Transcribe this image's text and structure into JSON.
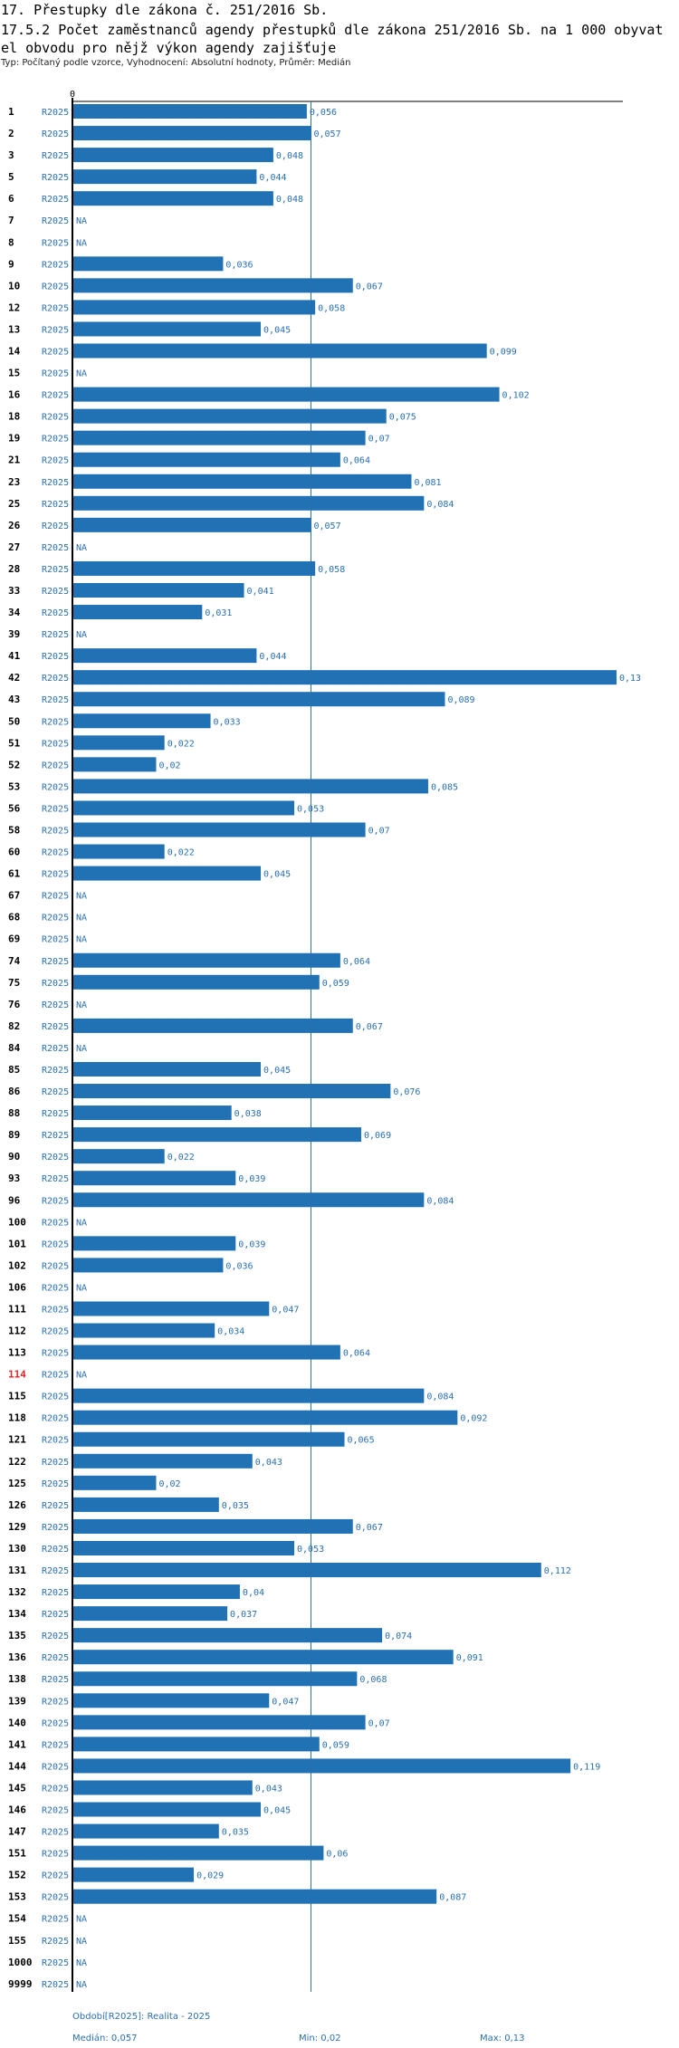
{
  "header": {
    "title_line1": "17. Přestupky dle zákona č. 251/2016 Sb.",
    "title_line2": "17.5.2 Počet zaměstnanců agendy přestupků dle zákona 251/2016 Sb. na 1 000 obyvat",
    "title_line3": "el obvodu pro nějž výkon agendy zajišťuje",
    "subtitle": "Typ: Počítaný podle vzorce, Vyhodnocení: Absolutní hodnoty, Průměr: Medián"
  },
  "colors": {
    "bar": "#2171b5",
    "label_blue": "#2a6fb0",
    "highlight_red": "#e0262b",
    "axis": "#000000"
  },
  "chart_data": {
    "type": "bar",
    "orientation": "horizontal",
    "axis_zero_label": "0",
    "xlim": [
      0,
      0.13
    ],
    "series_name": "R2025",
    "na_label": "NA",
    "median": 0.057,
    "highlight_category": "114",
    "categories": [
      "1",
      "2",
      "3",
      "5",
      "6",
      "7",
      "8",
      "9",
      "10",
      "12",
      "13",
      "14",
      "15",
      "16",
      "18",
      "19",
      "21",
      "23",
      "25",
      "26",
      "27",
      "28",
      "33",
      "34",
      "39",
      "41",
      "42",
      "43",
      "50",
      "51",
      "52",
      "53",
      "56",
      "58",
      "60",
      "61",
      "67",
      "68",
      "69",
      "74",
      "75",
      "76",
      "82",
      "84",
      "85",
      "86",
      "88",
      "89",
      "90",
      "93",
      "96",
      "100",
      "101",
      "102",
      "106",
      "111",
      "112",
      "113",
      "114",
      "115",
      "118",
      "121",
      "122",
      "125",
      "126",
      "129",
      "130",
      "131",
      "132",
      "134",
      "135",
      "136",
      "138",
      "139",
      "140",
      "141",
      "144",
      "145",
      "146",
      "147",
      "151",
      "152",
      "153",
      "154",
      "155",
      "1000",
      "9999"
    ],
    "values": [
      0.056,
      0.057,
      0.048,
      0.044,
      0.048,
      null,
      null,
      0.036,
      0.067,
      0.058,
      0.045,
      0.099,
      null,
      0.102,
      0.075,
      0.07,
      0.064,
      0.081,
      0.084,
      0.057,
      null,
      0.058,
      0.041,
      0.031,
      null,
      0.044,
      0.13,
      0.089,
      0.033,
      0.022,
      0.02,
      0.085,
      0.053,
      0.07,
      0.022,
      0.045,
      null,
      null,
      null,
      0.064,
      0.059,
      null,
      0.067,
      null,
      0.045,
      0.076,
      0.038,
      0.069,
      0.022,
      0.039,
      0.084,
      null,
      0.039,
      0.036,
      null,
      0.047,
      0.034,
      0.064,
      null,
      0.084,
      0.092,
      0.065,
      0.043,
      0.02,
      0.035,
      0.067,
      0.053,
      0.112,
      0.04,
      0.037,
      0.074,
      0.091,
      0.068,
      0.047,
      0.07,
      0.059,
      0.119,
      0.043,
      0.045,
      0.035,
      0.06,
      0.029,
      0.087,
      null,
      null,
      null,
      null
    ],
    "value_labels": [
      "0,056",
      "0,057",
      "0,048",
      "0,044",
      "0,048",
      "NA",
      "NA",
      "0,036",
      "0,067",
      "0,058",
      "0,045",
      "0,099",
      "NA",
      "0,102",
      "0,075",
      "0,07",
      "0,064",
      "0,081",
      "0,084",
      "0,057",
      "NA",
      "0,058",
      "0,041",
      "0,031",
      "NA",
      "0,044",
      "0,13",
      "0,089",
      "0,033",
      "0,022",
      "0,02",
      "0,085",
      "0,053",
      "0,07",
      "0,022",
      "0,045",
      "NA",
      "NA",
      "NA",
      "0,064",
      "0,059",
      "NA",
      "0,067",
      "NA",
      "0,045",
      "0,076",
      "0,038",
      "0,069",
      "0,022",
      "0,039",
      "0,084",
      "NA",
      "0,039",
      "0,036",
      "NA",
      "0,047",
      "0,034",
      "0,064",
      "NA",
      "0,084",
      "0,092",
      "0,065",
      "0,043",
      "0,02",
      "0,035",
      "0,067",
      "0,053",
      "0,112",
      "0,04",
      "0,037",
      "0,074",
      "0,091",
      "0,068",
      "0,047",
      "0,07",
      "0,059",
      "0,119",
      "0,043",
      "0,045",
      "0,035",
      "0,06",
      "0,029",
      "0,087",
      "NA",
      "NA",
      "NA",
      "NA"
    ]
  },
  "footer": {
    "period": "Období[R2025]: Realita - 2025",
    "median": "Medián: 0,057",
    "min": "Min: 0,02",
    "max": "Max: 0,13"
  }
}
